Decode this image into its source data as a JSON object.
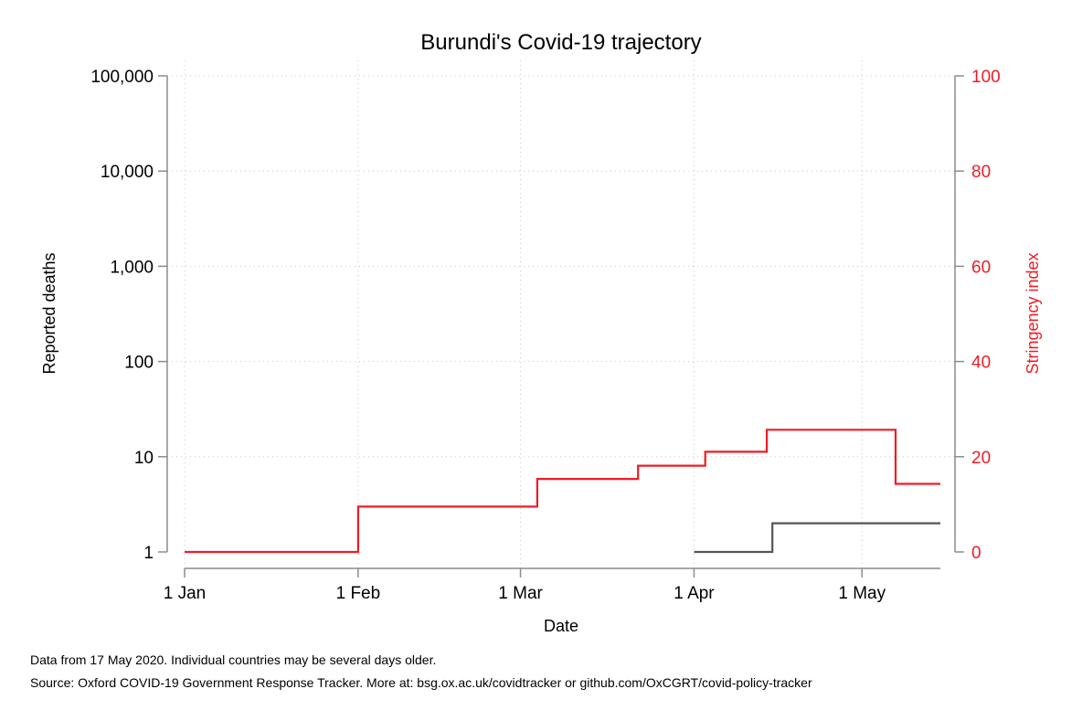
{
  "chart_data": {
    "type": "line",
    "title": "Burundi's Covid-19 trajectory",
    "xlabel": "Date",
    "ylabel_left": "Reported deaths",
    "ylabel_right": "Stringency index",
    "y_left_scale": "log",
    "y_left_lim": [
      1,
      100000
    ],
    "y_right_lim": [
      0,
      100
    ],
    "x_range": [
      "2020-01-01",
      "2020-05-15"
    ],
    "x_ticks": [
      {
        "date": "2020-01-01",
        "label": "1 Jan"
      },
      {
        "date": "2020-02-01",
        "label": "1 Feb"
      },
      {
        "date": "2020-03-01",
        "label": "1 Mar"
      },
      {
        "date": "2020-04-01",
        "label": "1 Apr"
      },
      {
        "date": "2020-05-01",
        "label": "1 May"
      }
    ],
    "y_left_ticks": [
      {
        "value": 1,
        "label": "1"
      },
      {
        "value": 10,
        "label": "10"
      },
      {
        "value": 100,
        "label": "100"
      },
      {
        "value": 1000,
        "label": "1,000"
      },
      {
        "value": 10000,
        "label": "10,000"
      },
      {
        "value": 100000,
        "label": "100,000"
      }
    ],
    "y_right_ticks": [
      {
        "value": 0,
        "label": "0"
      },
      {
        "value": 20,
        "label": "20"
      },
      {
        "value": 40,
        "label": "40"
      },
      {
        "value": 60,
        "label": "60"
      },
      {
        "value": 80,
        "label": "80"
      },
      {
        "value": 100,
        "label": "100"
      }
    ],
    "grid": true,
    "colors": {
      "deaths": "#555555",
      "stringency": "#ee1c25",
      "right_axis_text": "#ee1c25"
    },
    "series": [
      {
        "key": "stringency",
        "axis": "right",
        "step": true,
        "points": [
          {
            "x": "2020-01-01",
            "y": 0
          },
          {
            "x": "2020-02-01",
            "y": 9.52
          },
          {
            "x": "2020-03-04",
            "y": 15.34
          },
          {
            "x": "2020-03-22",
            "y": 18.12
          },
          {
            "x": "2020-04-03",
            "y": 21.03
          },
          {
            "x": "2020-04-14",
            "y": 25.66
          },
          {
            "x": "2020-05-07",
            "y": 14.29
          },
          {
            "x": "2020-05-15",
            "y": 14.29
          }
        ]
      },
      {
        "key": "deaths",
        "axis": "left",
        "step": true,
        "points": [
          {
            "x": "2020-04-01",
            "y": 1
          },
          {
            "x": "2020-04-15",
            "y": 2
          },
          {
            "x": "2020-05-15",
            "y": 2
          }
        ]
      }
    ]
  },
  "footer": {
    "note": "Data from 17 May 2020. Individual countries may be several days older.",
    "source": "Source: Oxford COVID-19 Government Response Tracker. More at: bsg.ox.ac.uk/covidtracker or github.com/OxCGRT/covid-policy-tracker"
  }
}
